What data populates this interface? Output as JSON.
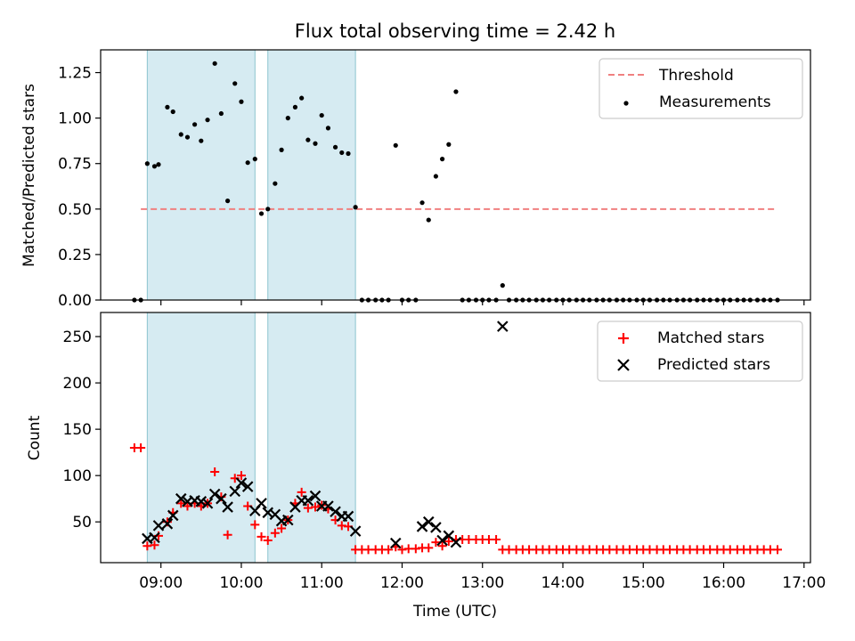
{
  "chart_data": [
    {
      "type": "scatter",
      "title": "Flux total observing time = 2.42 h",
      "xlabel": "",
      "ylabel": "Matched/Predicted stars",
      "ylim": [
        0,
        1.375
      ],
      "yticks": [
        0.0,
        0.25,
        0.5,
        0.75,
        1.0,
        1.25
      ],
      "ytick_labels": [
        "0.00",
        "0.25",
        "0.50",
        "0.75",
        "1.00",
        "1.25"
      ],
      "xlim_hours": [
        8.25,
        17.08
      ],
      "xticks_hours": [
        9,
        10,
        11,
        12,
        13,
        14,
        15,
        16,
        17
      ],
      "xtick_labels": [],
      "legend_position": "top-right",
      "legend": [
        {
          "key": "threshold",
          "label": "Threshold"
        },
        {
          "key": "measurements",
          "label": "Measurements"
        }
      ],
      "shaded_intervals_hours": [
        [
          8.83,
          10.17
        ],
        [
          10.33,
          11.42
        ]
      ],
      "threshold": {
        "y": 0.5,
        "x_range_hours": [
          8.75,
          16.67
        ],
        "color": "#f08080"
      },
      "series": [
        {
          "name": "Measurements",
          "color": "#000000",
          "points_hours": [
            [
              8.67,
              0.0
            ],
            [
              8.75,
              0.0
            ],
            [
              8.83,
              0.75
            ],
            [
              8.92,
              0.735
            ],
            [
              8.97,
              0.745
            ],
            [
              9.08,
              1.06
            ],
            [
              9.15,
              1.035
            ],
            [
              9.25,
              0.91
            ],
            [
              9.33,
              0.895
            ],
            [
              9.42,
              0.965
            ],
            [
              9.5,
              0.875
            ],
            [
              9.58,
              0.99
            ],
            [
              9.67,
              1.3
            ],
            [
              9.75,
              1.025
            ],
            [
              9.83,
              0.545
            ],
            [
              9.92,
              1.19
            ],
            [
              10.0,
              1.09
            ],
            [
              10.08,
              0.755
            ],
            [
              10.17,
              0.775
            ],
            [
              10.25,
              0.475
            ],
            [
              10.33,
              0.5
            ],
            [
              10.42,
              0.64
            ],
            [
              10.5,
              0.825
            ],
            [
              10.58,
              1.0
            ],
            [
              10.67,
              1.06
            ],
            [
              10.75,
              1.11
            ],
            [
              10.83,
              0.88
            ],
            [
              10.92,
              0.86
            ],
            [
              11.0,
              1.015
            ],
            [
              11.08,
              0.945
            ],
            [
              11.17,
              0.84
            ],
            [
              11.25,
              0.81
            ],
            [
              11.33,
              0.805
            ],
            [
              11.42,
              0.51
            ],
            [
              11.5,
              0.0
            ],
            [
              11.58,
              0.0
            ],
            [
              11.67,
              0.0
            ],
            [
              11.75,
              0.0
            ],
            [
              11.83,
              0.0
            ],
            [
              11.92,
              0.85
            ],
            [
              12.0,
              0.0
            ],
            [
              12.08,
              0.0
            ],
            [
              12.17,
              0.0
            ],
            [
              12.25,
              0.535
            ],
            [
              12.33,
              0.44
            ],
            [
              12.42,
              0.68
            ],
            [
              12.5,
              0.775
            ],
            [
              12.58,
              0.855
            ],
            [
              12.67,
              1.145
            ],
            [
              12.75,
              0.0
            ],
            [
              12.83,
              0.0
            ],
            [
              12.92,
              0.0
            ],
            [
              13.0,
              0.0
            ],
            [
              13.08,
              0.0
            ],
            [
              13.17,
              0.0
            ],
            [
              13.25,
              0.08
            ],
            [
              13.33,
              0.0
            ],
            [
              13.42,
              0.0
            ],
            [
              13.5,
              0.0
            ],
            [
              13.58,
              0.0
            ],
            [
              13.67,
              0.0
            ],
            [
              13.75,
              0.0
            ],
            [
              13.83,
              0.0
            ],
            [
              13.92,
              0.0
            ],
            [
              14.0,
              0.0
            ],
            [
              14.08,
              0.0
            ],
            [
              14.17,
              0.0
            ],
            [
              14.25,
              0.0
            ],
            [
              14.33,
              0.0
            ],
            [
              14.42,
              0.0
            ],
            [
              14.5,
              0.0
            ],
            [
              14.58,
              0.0
            ],
            [
              14.67,
              0.0
            ],
            [
              14.75,
              0.0
            ],
            [
              14.83,
              0.0
            ],
            [
              14.92,
              0.0
            ],
            [
              15.0,
              0.0
            ],
            [
              15.08,
              0.0
            ],
            [
              15.17,
              0.0
            ],
            [
              15.25,
              0.0
            ],
            [
              15.33,
              0.0
            ],
            [
              15.42,
              0.0
            ],
            [
              15.5,
              0.0
            ],
            [
              15.58,
              0.0
            ],
            [
              15.67,
              0.0
            ],
            [
              15.75,
              0.0
            ],
            [
              15.83,
              0.0
            ],
            [
              15.92,
              0.0
            ],
            [
              16.0,
              0.0
            ],
            [
              16.08,
              0.0
            ],
            [
              16.17,
              0.0
            ],
            [
              16.25,
              0.0
            ],
            [
              16.33,
              0.0
            ],
            [
              16.42,
              0.0
            ],
            [
              16.5,
              0.0
            ],
            [
              16.58,
              0.0
            ],
            [
              16.67,
              0.0
            ]
          ]
        }
      ]
    },
    {
      "type": "scatter",
      "title": "",
      "xlabel": "Time (UTC)",
      "ylabel": "Count",
      "ylim": [
        6,
        276
      ],
      "yticks": [
        50,
        100,
        150,
        200,
        250
      ],
      "ytick_labels": [
        "50",
        "100",
        "150",
        "200",
        "250"
      ],
      "xlim_hours": [
        8.25,
        17.08
      ],
      "xticks_hours": [
        9,
        10,
        11,
        12,
        13,
        14,
        15,
        16,
        17
      ],
      "xtick_labels": [
        "09:00",
        "10:00",
        "11:00",
        "12:00",
        "13:00",
        "14:00",
        "15:00",
        "16:00",
        "17:00"
      ],
      "legend_position": "top-right",
      "legend": [
        {
          "key": "matched",
          "label": "Matched stars"
        },
        {
          "key": "predicted",
          "label": "Predicted stars"
        }
      ],
      "shaded_intervals_hours": [
        [
          8.83,
          10.17
        ],
        [
          10.33,
          11.42
        ]
      ],
      "series": [
        {
          "name": "Matched stars",
          "marker": "plus",
          "color": "#ff0000",
          "points_hours": [
            [
              8.67,
              130
            ],
            [
              8.75,
              130
            ],
            [
              8.83,
              24
            ],
            [
              8.92,
              25
            ],
            [
              8.97,
              35
            ],
            [
              9.08,
              50
            ],
            [
              9.15,
              60
            ],
            [
              9.25,
              70
            ],
            [
              9.33,
              67
            ],
            [
              9.42,
              70
            ],
            [
              9.5,
              67
            ],
            [
              9.58,
              70
            ],
            [
              9.67,
              104
            ],
            [
              9.75,
              77
            ],
            [
              9.83,
              36
            ],
            [
              9.92,
              97
            ],
            [
              10.0,
              100
            ],
            [
              10.08,
              67
            ],
            [
              10.17,
              47
            ],
            [
              10.25,
              34
            ],
            [
              10.33,
              30
            ],
            [
              10.42,
              38
            ],
            [
              10.5,
              43
            ],
            [
              10.58,
              52
            ],
            [
              10.67,
              70
            ],
            [
              10.75,
              82
            ],
            [
              10.83,
              65
            ],
            [
              10.92,
              66
            ],
            [
              11.0,
              68
            ],
            [
              11.08,
              64
            ],
            [
              11.17,
              52
            ],
            [
              11.25,
              46
            ],
            [
              11.33,
              45
            ],
            [
              11.42,
              20
            ],
            [
              11.5,
              20
            ],
            [
              11.58,
              20
            ],
            [
              11.67,
              20
            ],
            [
              11.75,
              20
            ],
            [
              11.83,
              20
            ],
            [
              11.92,
              23
            ],
            [
              12.0,
              20
            ],
            [
              12.08,
              21
            ],
            [
              12.17,
              21
            ],
            [
              12.25,
              22
            ],
            [
              12.33,
              22
            ],
            [
              12.42,
              28
            ],
            [
              12.5,
              24
            ],
            [
              12.58,
              29
            ],
            [
              12.67,
              31
            ],
            [
              12.75,
              31
            ],
            [
              12.83,
              31
            ],
            [
              12.92,
              31
            ],
            [
              13.0,
              31
            ],
            [
              13.08,
              31
            ],
            [
              13.17,
              31
            ],
            [
              13.25,
              20
            ],
            [
              13.33,
              20
            ],
            [
              13.42,
              20
            ],
            [
              13.5,
              20
            ],
            [
              13.58,
              20
            ],
            [
              13.67,
              20
            ],
            [
              13.75,
              20
            ],
            [
              13.83,
              20
            ],
            [
              13.92,
              20
            ],
            [
              14.0,
              20
            ],
            [
              14.08,
              20
            ],
            [
              14.17,
              20
            ],
            [
              14.25,
              20
            ],
            [
              14.33,
              20
            ],
            [
              14.42,
              20
            ],
            [
              14.5,
              20
            ],
            [
              14.58,
              20
            ],
            [
              14.67,
              20
            ],
            [
              14.75,
              20
            ],
            [
              14.83,
              20
            ],
            [
              14.92,
              20
            ],
            [
              15.0,
              20
            ],
            [
              15.08,
              20
            ],
            [
              15.17,
              20
            ],
            [
              15.25,
              20
            ],
            [
              15.33,
              20
            ],
            [
              15.42,
              20
            ],
            [
              15.5,
              20
            ],
            [
              15.58,
              20
            ],
            [
              15.67,
              20
            ],
            [
              15.75,
              20
            ],
            [
              15.83,
              20
            ],
            [
              15.92,
              20
            ],
            [
              16.0,
              20
            ],
            [
              16.08,
              20
            ],
            [
              16.17,
              20
            ],
            [
              16.25,
              20
            ],
            [
              16.33,
              20
            ],
            [
              16.42,
              20
            ],
            [
              16.5,
              20
            ],
            [
              16.58,
              20
            ],
            [
              16.67,
              20
            ]
          ]
        },
        {
          "name": "Predicted stars",
          "marker": "x",
          "color": "#000000",
          "points_hours": [
            [
              8.83,
              32
            ],
            [
              8.92,
              33
            ],
            [
              8.97,
              46
            ],
            [
              9.08,
              48
            ],
            [
              9.15,
              57
            ],
            [
              9.25,
              75
            ],
            [
              9.33,
              72
            ],
            [
              9.42,
              73
            ],
            [
              9.5,
              72
            ],
            [
              9.58,
              70
            ],
            [
              9.67,
              80
            ],
            [
              9.75,
              75
            ],
            [
              9.83,
              66
            ],
            [
              9.92,
              83
            ],
            [
              10.0,
              92
            ],
            [
              10.08,
              88
            ],
            [
              10.17,
              62
            ],
            [
              10.25,
              70
            ],
            [
              10.33,
              60
            ],
            [
              10.42,
              58
            ],
            [
              10.5,
              51
            ],
            [
              10.58,
              52
            ],
            [
              10.67,
              66
            ],
            [
              10.75,
              73
            ],
            [
              10.83,
              73
            ],
            [
              10.92,
              78
            ],
            [
              11.0,
              67
            ],
            [
              11.08,
              67
            ],
            [
              11.17,
              61
            ],
            [
              11.25,
              56
            ],
            [
              11.33,
              56
            ],
            [
              11.42,
              40
            ],
            [
              11.92,
              27
            ],
            [
              12.25,
              45
            ],
            [
              12.33,
              50
            ],
            [
              12.42,
              44
            ],
            [
              12.5,
              30
            ],
            [
              12.58,
              35
            ],
            [
              12.67,
              28
            ],
            [
              13.25,
              261
            ]
          ]
        }
      ]
    }
  ]
}
